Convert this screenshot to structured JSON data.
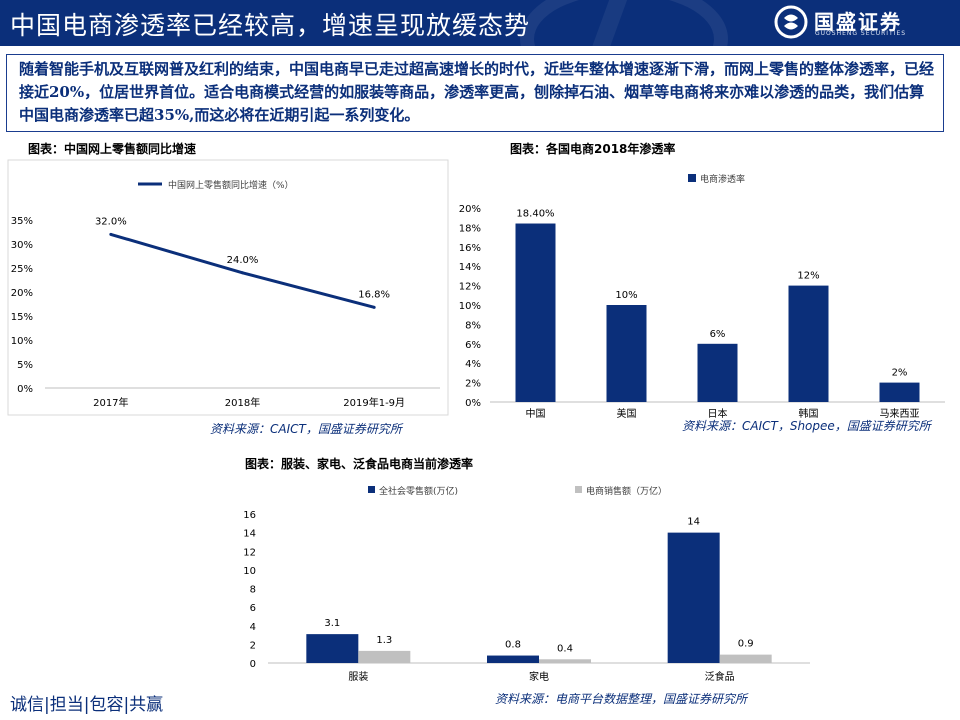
{
  "header": {
    "title": "中国电商渗透率已经较高，增速呈现放缓态势",
    "brand_name": "国盛证券",
    "brand_en": "GUOSHENG SECURITIES",
    "bg_color": "#0b2f7a"
  },
  "intro": {
    "text": "随着智能手机及互联网普及红利的结束，中国电商早已走过超高速增长的时代，近些年整体增速逐渐下滑，而网上零售的整体渗透率，已经接近20%，位居世界首位。适合电商模式经营的如服装等商品，渗透率更高，刨除掉石油、烟草等电商将来亦难以渗透的品类，我们估算中国电商渗透率已超35%,而这必将在近期引起一系列变化。"
  },
  "charts": {
    "line": {
      "caption": "图表：中国网上零售额同比增速",
      "source": "资料来源：CAICT，国盛证券研究所"
    },
    "bar_countries": {
      "caption": "图表：各国电商2018年渗透率",
      "source": "资料来源：CAICT，Shopee，国盛证券研究所"
    },
    "bar_categories": {
      "caption": "图表：服装、家电、泛食品电商当前渗透率",
      "source": "资料来源：电商平台数据整理，国盛证券研究所"
    }
  },
  "footer": {
    "slogan": "诚信|担当|包容|共赢"
  },
  "chart_data": [
    {
      "type": "line",
      "title": "图表：中国网上零售额同比增速",
      "categories": [
        "2017年",
        "2018年",
        "2019年1-9月"
      ],
      "series": [
        {
          "name": "中国网上零售额同比增速（%）",
          "values": [
            32.0,
            24.0,
            16.8
          ],
          "color": "#0b2f7a"
        }
      ],
      "data_labels": [
        "32.0%",
        "24.0%",
        "16.8%"
      ],
      "yticks": [
        "0%",
        "5%",
        "10%",
        "15%",
        "20%",
        "25%",
        "30%",
        "35%"
      ],
      "ylim": [
        0,
        35
      ],
      "legend": "top",
      "grid": false
    },
    {
      "type": "bar",
      "title": "图表：各国电商2018年渗透率",
      "categories": [
        "中国",
        "美国",
        "日本",
        "韩国",
        "马来西亚"
      ],
      "series": [
        {
          "name": "电商渗透率",
          "values": [
            18.4,
            10,
            6,
            12,
            2
          ],
          "color": "#0b2f7a"
        }
      ],
      "data_labels": [
        "18.40%",
        "10%",
        "6%",
        "12%",
        "2%"
      ],
      "yticks": [
        "0%",
        "2%",
        "4%",
        "6%",
        "8%",
        "10%",
        "12%",
        "14%",
        "16%",
        "18%",
        "20%"
      ],
      "ylim": [
        0,
        20
      ],
      "legend": "top",
      "grid": false
    },
    {
      "type": "bar",
      "title": "图表：服装、家电、泛食品电商当前渗透率",
      "categories": [
        "服装",
        "家电",
        "泛食品"
      ],
      "series": [
        {
          "name": "全社会零售额(万亿)",
          "values": [
            3.1,
            0.8,
            14
          ],
          "labels": [
            "3.1",
            "0.8",
            "14"
          ],
          "color": "#0b2f7a"
        },
        {
          "name": "电商销售额（万亿）",
          "values": [
            1.3,
            0.4,
            0.9
          ],
          "labels": [
            "1.3",
            "0.4",
            "0.9"
          ],
          "color": "#c0c0c0"
        }
      ],
      "yticks": [
        "0",
        "2",
        "4",
        "6",
        "8",
        "10",
        "12",
        "14",
        "16"
      ],
      "ylim": [
        0,
        16
      ],
      "legend": "top",
      "grid": false
    }
  ]
}
